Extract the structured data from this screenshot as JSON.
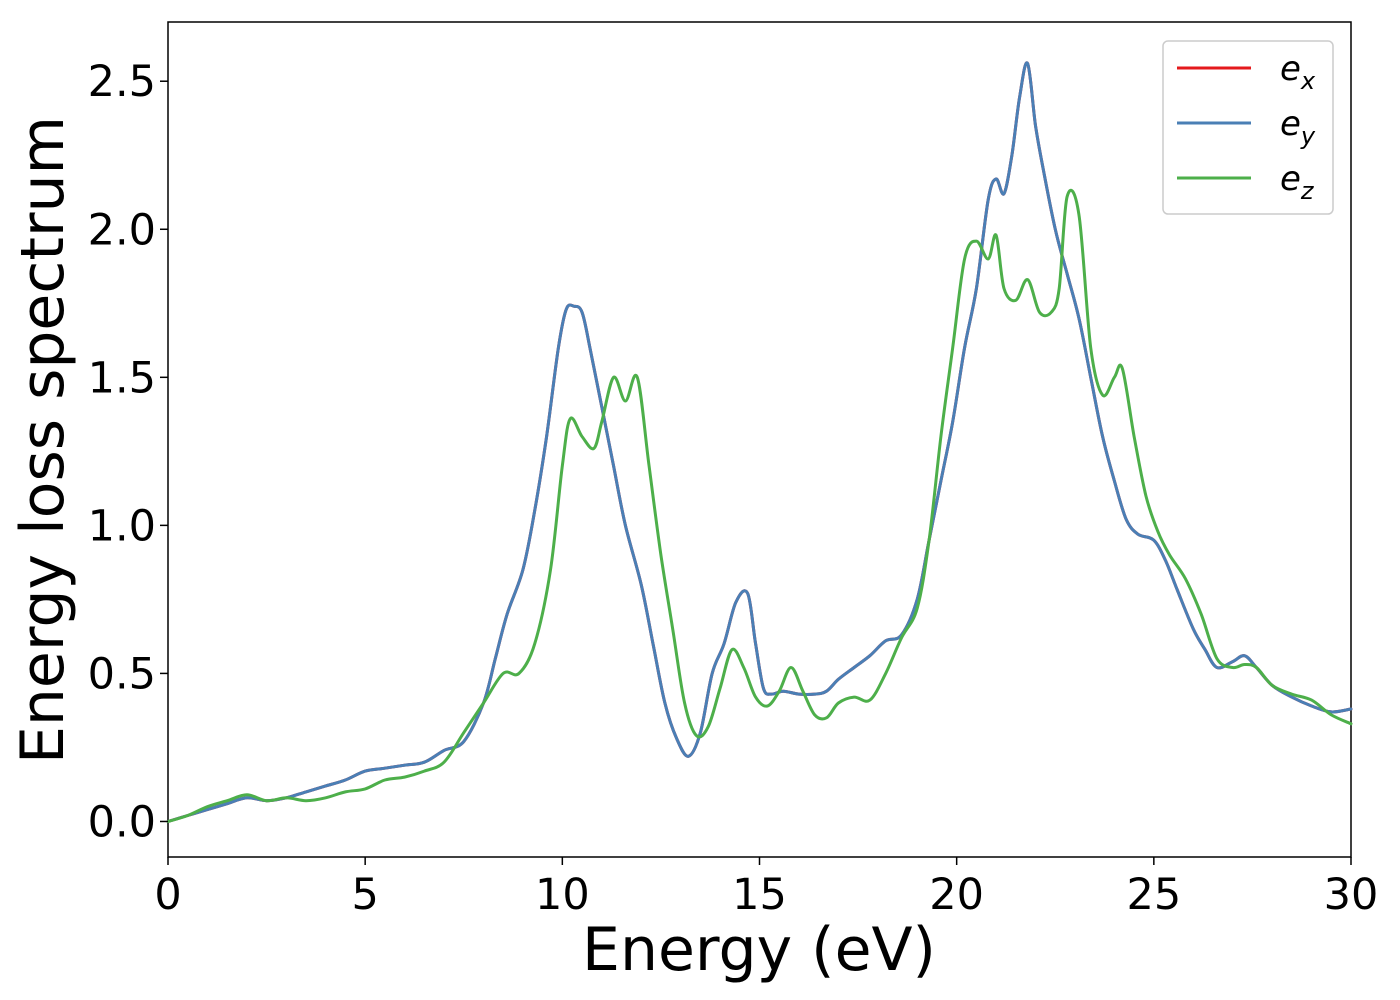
{
  "chart_data": {
    "type": "line",
    "xlabel": "Energy (eV)",
    "ylabel": "Energy loss spectrum",
    "xlim": [
      0,
      30
    ],
    "ylim": [
      -0.12,
      2.7
    ],
    "xticks": [
      0,
      5,
      10,
      15,
      20,
      25,
      30
    ],
    "xtick_labels": [
      "0",
      "5",
      "10",
      "15",
      "20",
      "25",
      "30"
    ],
    "yticks": [
      0.0,
      0.5,
      1.0,
      1.5,
      2.0,
      2.5
    ],
    "ytick_labels": [
      "0.0",
      "0.5",
      "1.0",
      "1.5",
      "2.0",
      "2.5"
    ],
    "grid": false,
    "legend_position": "top-right",
    "series": [
      {
        "name": "e_x",
        "legend_base": "e",
        "legend_sub": "x",
        "color": "#e41a1c",
        "x": [
          0,
          0.5,
          1,
          1.5,
          2,
          2.5,
          3,
          3.5,
          4,
          4.5,
          5,
          5.5,
          6,
          6.5,
          7,
          7.5,
          8,
          8.3,
          8.6,
          9,
          9.3,
          9.6,
          9.9,
          10.1,
          10.3,
          10.5,
          10.7,
          11,
          11.3,
          11.6,
          12,
          12.3,
          12.6,
          12.9,
          13.2,
          13.5,
          13.8,
          14.1,
          14.4,
          14.7,
          14.9,
          15.1,
          15.3,
          15.6,
          16,
          16.4,
          16.7,
          17,
          17.4,
          17.8,
          18.2,
          18.6,
          19,
          19.3,
          19.6,
          19.9,
          20.2,
          20.5,
          20.8,
          21,
          21.2,
          21.4,
          21.6,
          21.8,
          22,
          22.2,
          22.5,
          22.8,
          23.1,
          23.4,
          23.7,
          24,
          24.3,
          24.6,
          25,
          25.3,
          25.6,
          26,
          26.3,
          26.6,
          27,
          27.3,
          27.6,
          28,
          28.5,
          29,
          29.5,
          30
        ],
        "y": [
          0.0,
          0.02,
          0.04,
          0.06,
          0.08,
          0.07,
          0.08,
          0.1,
          0.12,
          0.14,
          0.17,
          0.18,
          0.19,
          0.2,
          0.24,
          0.27,
          0.4,
          0.55,
          0.7,
          0.85,
          1.05,
          1.3,
          1.6,
          1.73,
          1.74,
          1.72,
          1.6,
          1.4,
          1.2,
          1.0,
          0.8,
          0.6,
          0.4,
          0.28,
          0.22,
          0.3,
          0.5,
          0.6,
          0.74,
          0.77,
          0.6,
          0.45,
          0.43,
          0.44,
          0.43,
          0.43,
          0.44,
          0.48,
          0.52,
          0.56,
          0.61,
          0.63,
          0.75,
          0.95,
          1.15,
          1.35,
          1.6,
          1.8,
          2.1,
          2.17,
          2.12,
          2.25,
          2.45,
          2.56,
          2.35,
          2.2,
          2.0,
          1.85,
          1.7,
          1.5,
          1.3,
          1.15,
          1.02,
          0.97,
          0.95,
          0.88,
          0.78,
          0.65,
          0.58,
          0.52,
          0.54,
          0.56,
          0.52,
          0.46,
          0.42,
          0.39,
          0.37,
          0.38
        ]
      },
      {
        "name": "e_y",
        "legend_base": "e",
        "legend_sub": "y",
        "color": "#4a7fb5",
        "x": [
          0,
          0.5,
          1,
          1.5,
          2,
          2.5,
          3,
          3.5,
          4,
          4.5,
          5,
          5.5,
          6,
          6.5,
          7,
          7.5,
          8,
          8.3,
          8.6,
          9,
          9.3,
          9.6,
          9.9,
          10.1,
          10.3,
          10.5,
          10.7,
          11,
          11.3,
          11.6,
          12,
          12.3,
          12.6,
          12.9,
          13.2,
          13.5,
          13.8,
          14.1,
          14.4,
          14.7,
          14.9,
          15.1,
          15.3,
          15.6,
          16,
          16.4,
          16.7,
          17,
          17.4,
          17.8,
          18.2,
          18.6,
          19,
          19.3,
          19.6,
          19.9,
          20.2,
          20.5,
          20.8,
          21,
          21.2,
          21.4,
          21.6,
          21.8,
          22,
          22.2,
          22.5,
          22.8,
          23.1,
          23.4,
          23.7,
          24,
          24.3,
          24.6,
          25,
          25.3,
          25.6,
          26,
          26.3,
          26.6,
          27,
          27.3,
          27.6,
          28,
          28.5,
          29,
          29.5,
          30
        ],
        "y": [
          0.0,
          0.02,
          0.04,
          0.06,
          0.08,
          0.07,
          0.08,
          0.1,
          0.12,
          0.14,
          0.17,
          0.18,
          0.19,
          0.2,
          0.24,
          0.27,
          0.4,
          0.55,
          0.7,
          0.85,
          1.05,
          1.3,
          1.6,
          1.73,
          1.74,
          1.72,
          1.6,
          1.4,
          1.2,
          1.0,
          0.8,
          0.6,
          0.4,
          0.28,
          0.22,
          0.3,
          0.5,
          0.6,
          0.74,
          0.77,
          0.6,
          0.45,
          0.43,
          0.44,
          0.43,
          0.43,
          0.44,
          0.48,
          0.52,
          0.56,
          0.61,
          0.63,
          0.75,
          0.95,
          1.15,
          1.35,
          1.6,
          1.8,
          2.1,
          2.17,
          2.12,
          2.25,
          2.45,
          2.56,
          2.35,
          2.2,
          2.0,
          1.85,
          1.7,
          1.5,
          1.3,
          1.15,
          1.02,
          0.97,
          0.95,
          0.88,
          0.78,
          0.65,
          0.58,
          0.52,
          0.54,
          0.56,
          0.52,
          0.46,
          0.42,
          0.39,
          0.37,
          0.38
        ]
      },
      {
        "name": "e_z",
        "legend_base": "e",
        "legend_sub": "z",
        "color": "#4daf4a",
        "x": [
          0,
          0.5,
          1,
          1.5,
          2,
          2.5,
          3,
          3.5,
          4,
          4.5,
          5,
          5.5,
          6,
          6.5,
          7,
          7.5,
          8,
          8.5,
          8.9,
          9.3,
          9.7,
          10,
          10.2,
          10.5,
          10.8,
          11,
          11.3,
          11.6,
          11.9,
          12.2,
          12.5,
          12.8,
          13.1,
          13.4,
          13.7,
          14,
          14.3,
          14.6,
          14.9,
          15.2,
          15.5,
          15.8,
          16.1,
          16.4,
          16.7,
          17,
          17.4,
          17.8,
          18.2,
          18.6,
          19,
          19.3,
          19.6,
          19.9,
          20.2,
          20.5,
          20.8,
          21,
          21.2,
          21.5,
          21.8,
          22.1,
          22.4,
          22.6,
          22.8,
          23.1,
          23.4,
          23.7,
          24,
          24.2,
          24.5,
          24.8,
          25.1,
          25.4,
          25.8,
          26.2,
          26.6,
          27,
          27.3,
          27.6,
          28,
          28.5,
          29,
          29.5,
          30
        ],
        "y": [
          0.0,
          0.02,
          0.05,
          0.07,
          0.09,
          0.07,
          0.08,
          0.07,
          0.08,
          0.1,
          0.11,
          0.14,
          0.15,
          0.17,
          0.2,
          0.3,
          0.4,
          0.5,
          0.5,
          0.6,
          0.85,
          1.2,
          1.36,
          1.3,
          1.26,
          1.35,
          1.5,
          1.42,
          1.5,
          1.2,
          0.9,
          0.65,
          0.4,
          0.29,
          0.32,
          0.45,
          0.58,
          0.52,
          0.42,
          0.39,
          0.44,
          0.52,
          0.44,
          0.36,
          0.35,
          0.4,
          0.42,
          0.41,
          0.5,
          0.62,
          0.72,
          0.95,
          1.3,
          1.6,
          1.9,
          1.96,
          1.9,
          1.98,
          1.8,
          1.76,
          1.83,
          1.72,
          1.72,
          1.8,
          2.11,
          2.05,
          1.6,
          1.44,
          1.5,
          1.53,
          1.3,
          1.1,
          0.98,
          0.9,
          0.82,
          0.7,
          0.55,
          0.52,
          0.53,
          0.52,
          0.46,
          0.43,
          0.41,
          0.36,
          0.33
        ]
      }
    ]
  }
}
